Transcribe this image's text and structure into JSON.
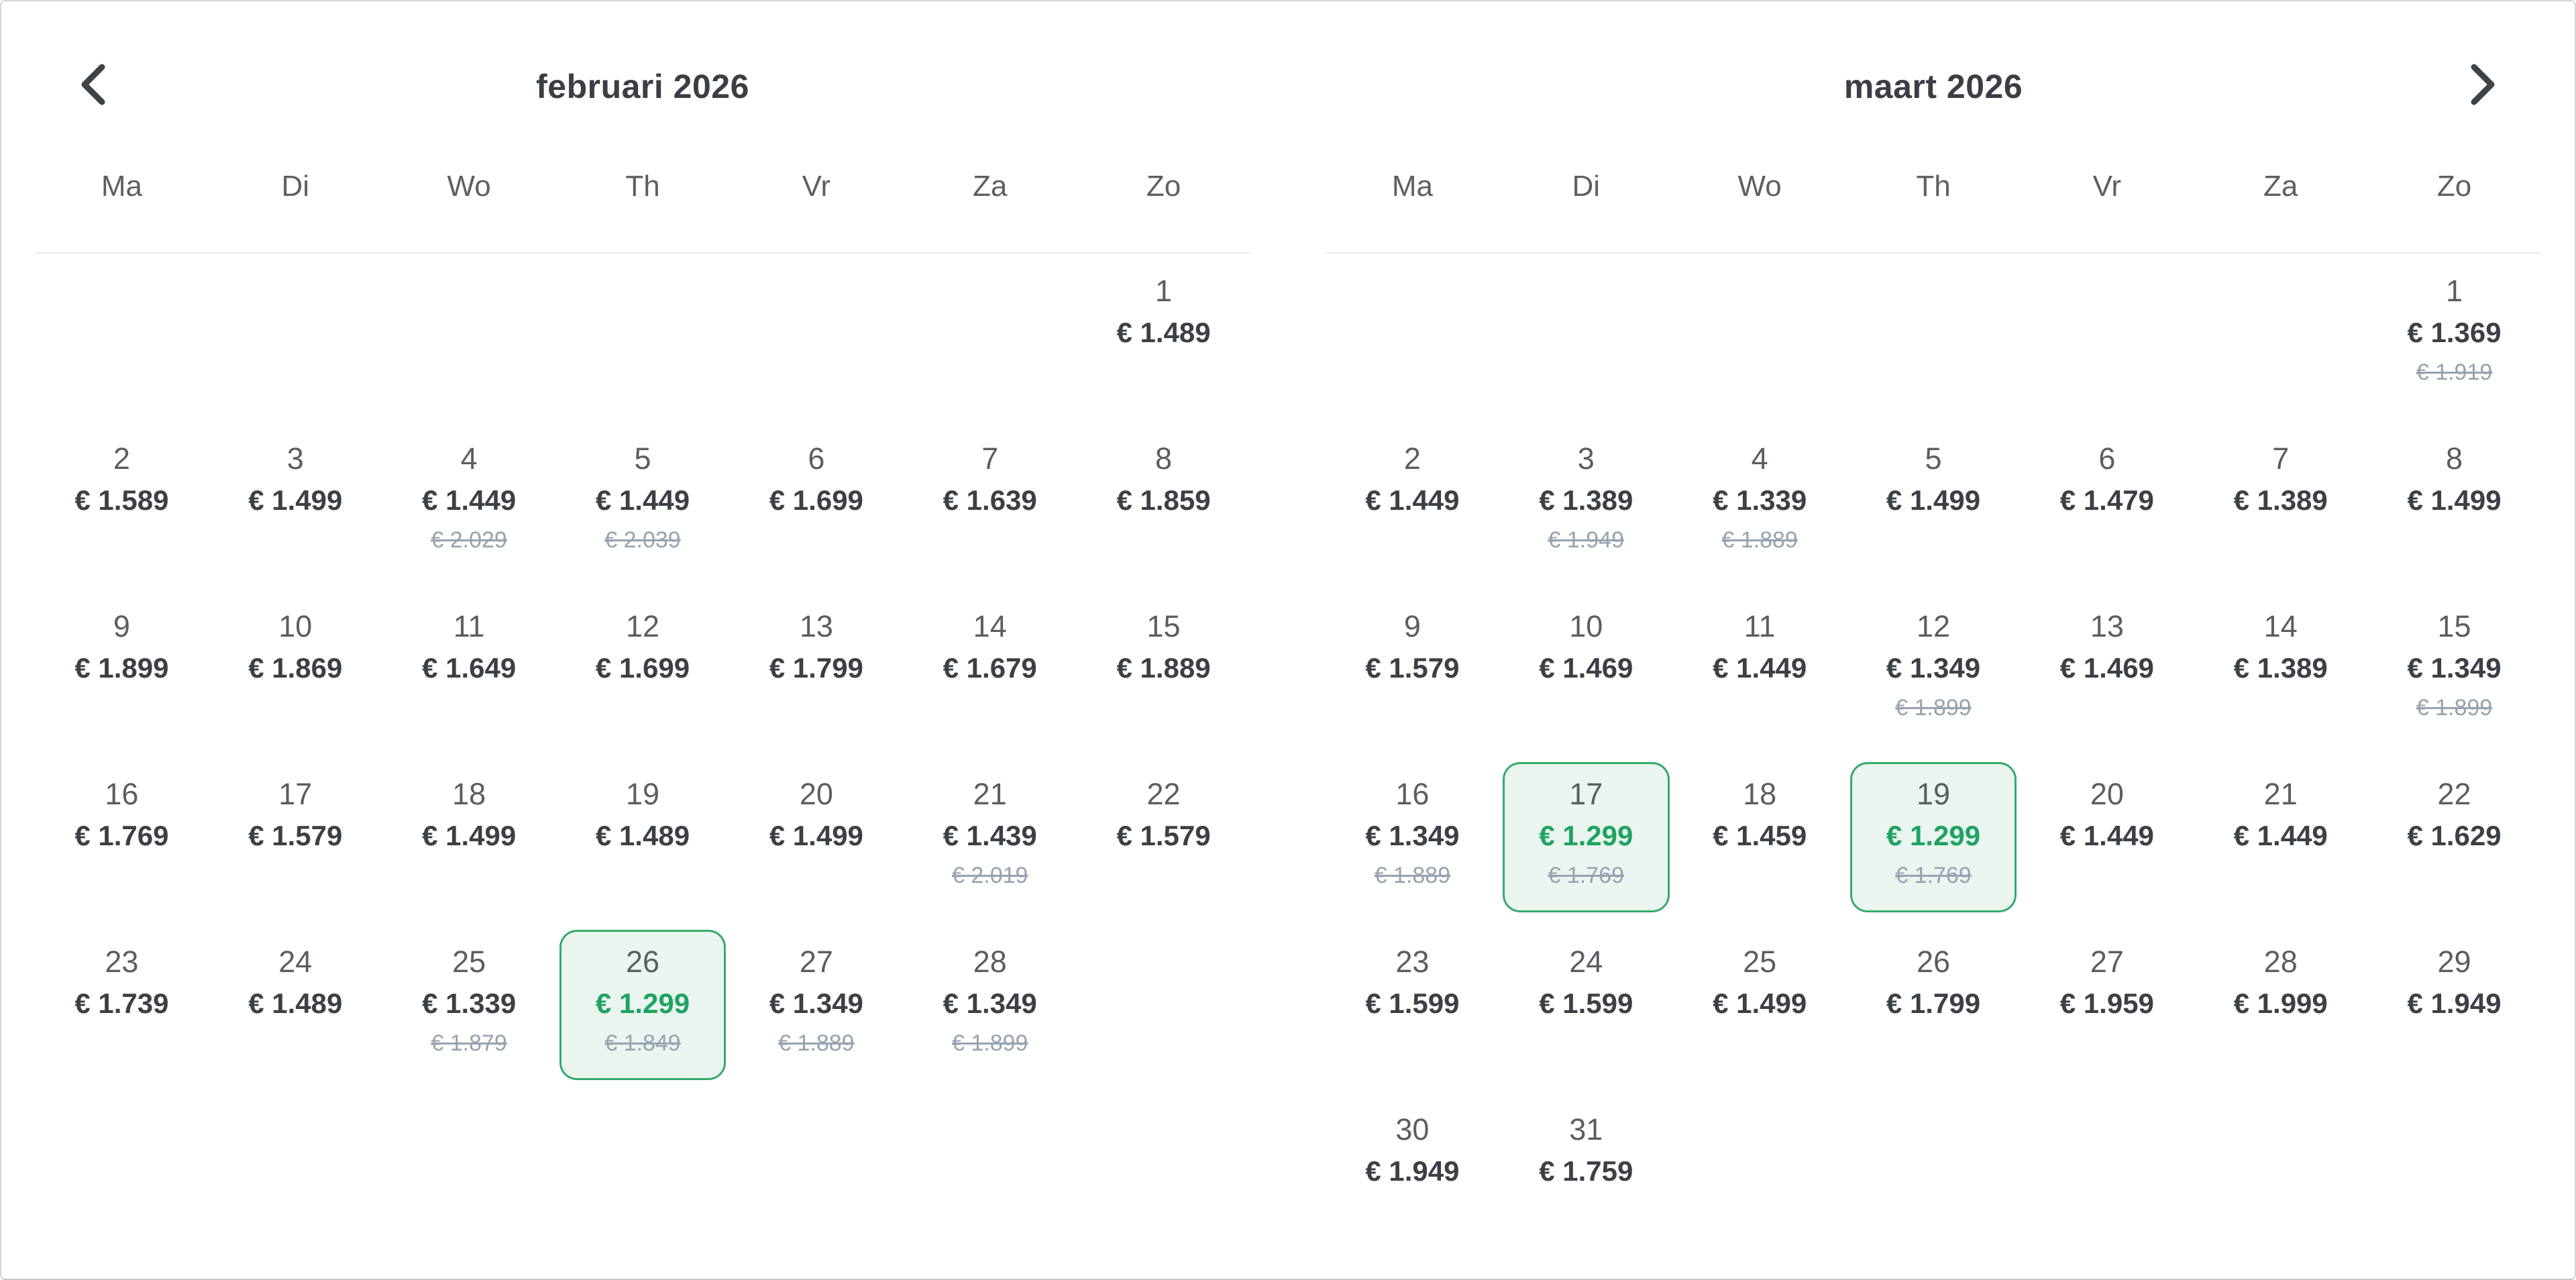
{
  "calendar": {
    "nav": {
      "prev_icon": "chevron-left",
      "next_icon": "chevron-right"
    },
    "months": [
      {
        "title": "februari 2026",
        "weekday_labels": [
          "Ma",
          "Di",
          "Wo",
          "Th",
          "Vr",
          "Za",
          "Zo"
        ],
        "weeks": [
          [
            null,
            null,
            null,
            null,
            null,
            null,
            {
              "day": "1",
              "price": "€ 1.489"
            }
          ],
          [
            {
              "day": "2",
              "price": "€ 1.589"
            },
            {
              "day": "3",
              "price": "€ 1.499"
            },
            {
              "day": "4",
              "price": "€ 1.449",
              "old_price": "€ 2.029"
            },
            {
              "day": "5",
              "price": "€ 1.449",
              "old_price": "€ 2.039"
            },
            {
              "day": "6",
              "price": "€ 1.699"
            },
            {
              "day": "7",
              "price": "€ 1.639"
            },
            {
              "day": "8",
              "price": "€ 1.859"
            }
          ],
          [
            {
              "day": "9",
              "price": "€ 1.899"
            },
            {
              "day": "10",
              "price": "€ 1.869"
            },
            {
              "day": "11",
              "price": "€ 1.649"
            },
            {
              "day": "12",
              "price": "€ 1.699"
            },
            {
              "day": "13",
              "price": "€ 1.799"
            },
            {
              "day": "14",
              "price": "€ 1.679"
            },
            {
              "day": "15",
              "price": "€ 1.889"
            }
          ],
          [
            {
              "day": "16",
              "price": "€ 1.769"
            },
            {
              "day": "17",
              "price": "€ 1.579"
            },
            {
              "day": "18",
              "price": "€ 1.499"
            },
            {
              "day": "19",
              "price": "€ 1.489"
            },
            {
              "day": "20",
              "price": "€ 1.499"
            },
            {
              "day": "21",
              "price": "€ 1.439",
              "old_price": "€ 2.019"
            },
            {
              "day": "22",
              "price": "€ 1.579"
            }
          ],
          [
            {
              "day": "23",
              "price": "€ 1.739"
            },
            {
              "day": "24",
              "price": "€ 1.489"
            },
            {
              "day": "25",
              "price": "€ 1.339",
              "old_price": "€ 1.879"
            },
            {
              "day": "26",
              "price": "€ 1.299",
              "old_price": "€ 1.849",
              "selected": true
            },
            {
              "day": "27",
              "price": "€ 1.349",
              "old_price": "€ 1.889"
            },
            {
              "day": "28",
              "price": "€ 1.349",
              "old_price": "€ 1.899"
            },
            null
          ]
        ]
      },
      {
        "title": "maart 2026",
        "weekday_labels": [
          "Ma",
          "Di",
          "Wo",
          "Th",
          "Vr",
          "Za",
          "Zo"
        ],
        "weeks": [
          [
            null,
            null,
            null,
            null,
            null,
            null,
            {
              "day": "1",
              "price": "€ 1.369",
              "old_price": "€ 1.919"
            }
          ],
          [
            {
              "day": "2",
              "price": "€ 1.449"
            },
            {
              "day": "3",
              "price": "€ 1.389",
              "old_price": "€ 1.949"
            },
            {
              "day": "4",
              "price": "€ 1.339",
              "old_price": "€ 1.889"
            },
            {
              "day": "5",
              "price": "€ 1.499"
            },
            {
              "day": "6",
              "price": "€ 1.479"
            },
            {
              "day": "7",
              "price": "€ 1.389"
            },
            {
              "day": "8",
              "price": "€ 1.499"
            }
          ],
          [
            {
              "day": "9",
              "price": "€ 1.579"
            },
            {
              "day": "10",
              "price": "€ 1.469"
            },
            {
              "day": "11",
              "price": "€ 1.449"
            },
            {
              "day": "12",
              "price": "€ 1.349",
              "old_price": "€ 1.899"
            },
            {
              "day": "13",
              "price": "€ 1.469"
            },
            {
              "day": "14",
              "price": "€ 1.389"
            },
            {
              "day": "15",
              "price": "€ 1.349",
              "old_price": "€ 1.899"
            }
          ],
          [
            {
              "day": "16",
              "price": "€ 1.349",
              "old_price": "€ 1.889"
            },
            {
              "day": "17",
              "price": "€ 1.299",
              "old_price": "€ 1.769",
              "selected": true
            },
            {
              "day": "18",
              "price": "€ 1.459"
            },
            {
              "day": "19",
              "price": "€ 1.299",
              "old_price": "€ 1.769",
              "selected": true
            },
            {
              "day": "20",
              "price": "€ 1.449"
            },
            {
              "day": "21",
              "price": "€ 1.449"
            },
            {
              "day": "22",
              "price": "€ 1.629"
            }
          ],
          [
            {
              "day": "23",
              "price": "€ 1.599"
            },
            {
              "day": "24",
              "price": "€ 1.599"
            },
            {
              "day": "25",
              "price": "€ 1.499"
            },
            {
              "day": "26",
              "price": "€ 1.799"
            },
            {
              "day": "27",
              "price": "€ 1.959"
            },
            {
              "day": "28",
              "price": "€ 1.999"
            },
            {
              "day": "29",
              "price": "€ 1.949"
            }
          ],
          [
            {
              "day": "30",
              "price": "€ 1.949"
            },
            {
              "day": "31",
              "price": "€ 1.759"
            },
            null,
            null,
            null,
            null,
            null
          ]
        ]
      }
    ]
  },
  "colors": {
    "selected_border": "#36a96d",
    "selected_background": "#e9f5ee",
    "selected_price_text": "#1fa362",
    "price_text": "#3c4046",
    "old_price_text": "#98a2b0",
    "day_number_text": "#5a5d61",
    "weekday_text": "#5c6064",
    "title_text": "#3b3e45",
    "divider": "#ececec",
    "panel_border": "#d6d6d6"
  }
}
